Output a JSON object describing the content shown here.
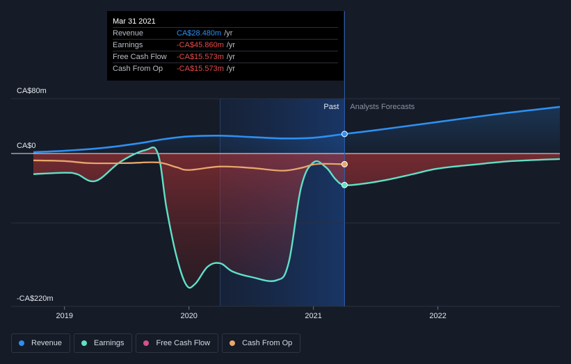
{
  "chart_data": {
    "type": "line",
    "title": "",
    "currency": "CA$",
    "y_axis": {
      "top_label": "CA$80m",
      "zero_label": "CA$0",
      "bottom_label": "-CA$220m",
      "ylim": [
        -220,
        80
      ]
    },
    "x_axis": {
      "tick_labels": [
        "2019",
        "2020",
        "2021",
        "2022"
      ],
      "xlim": [
        2018.75,
        2022.98
      ]
    },
    "divider": {
      "x": 2021.25,
      "past_label": "Past",
      "forecast_label": "Analysts Forecasts"
    },
    "series": [
      {
        "name": "Revenue",
        "color": "#2e8ff0",
        "x": [
          2018.75,
          2019.0,
          2019.3,
          2019.6,
          2019.8,
          2020.0,
          2020.25,
          2020.5,
          2020.75,
          2021.0,
          2021.25,
          2021.5,
          2021.75,
          2022.0,
          2022.5,
          2022.98
        ],
        "values": [
          2,
          4,
          8,
          15,
          21,
          25,
          26,
          24,
          22,
          23,
          28.48,
          34,
          40,
          46,
          58,
          68
        ]
      },
      {
        "name": "Earnings",
        "color": "#5fe0c8",
        "x": [
          2018.75,
          2019.0,
          2019.1,
          2019.25,
          2019.45,
          2019.65,
          2019.75,
          2019.82,
          2019.9,
          2019.98,
          2020.05,
          2020.15,
          2020.25,
          2020.35,
          2020.5,
          2020.7,
          2020.8,
          2020.9,
          2021.0,
          2021.1,
          2021.18,
          2021.25,
          2021.4,
          2021.6,
          2021.8,
          2022.0,
          2022.3,
          2022.6,
          2022.98
        ],
        "values": [
          -30,
          -28,
          -30,
          -40,
          -12,
          5,
          0,
          -80,
          -150,
          -192,
          -190,
          -165,
          -160,
          -172,
          -180,
          -185,
          -160,
          -50,
          -13,
          -20,
          -38,
          -45.86,
          -44,
          -38,
          -30,
          -22,
          -16,
          -11,
          -8
        ]
      },
      {
        "name": "Free Cash Flow",
        "color": "#d0548a",
        "x": [
          2018.75,
          2019.0,
          2019.2,
          2019.5,
          2019.75,
          2019.9,
          2020.0,
          2020.25,
          2020.5,
          2020.75,
          2020.9,
          2021.0,
          2021.1,
          2021.25
        ],
        "values": [
          -10,
          -11,
          -14,
          -14,
          -13,
          -20,
          -24,
          -19,
          -21,
          -25,
          -21,
          -16,
          -15,
          -15.573
        ]
      },
      {
        "name": "Cash From Op",
        "color": "#e8a868",
        "x": [
          2018.75,
          2019.0,
          2019.2,
          2019.5,
          2019.75,
          2019.9,
          2020.0,
          2020.25,
          2020.5,
          2020.75,
          2020.9,
          2021.0,
          2021.1,
          2021.25
        ],
        "values": [
          -10,
          -11,
          -14,
          -14,
          -13,
          -20,
          -24,
          -19,
          -21,
          -25,
          -21,
          -16,
          -15,
          -15.573
        ]
      }
    ]
  },
  "tooltip": {
    "date": "Mar 31 2021",
    "rows": [
      {
        "label": "Revenue",
        "value": "CA$28.480m",
        "unit": "/yr",
        "color": "#2e8ff0"
      },
      {
        "label": "Earnings",
        "value": "-CA$45.860m",
        "unit": "/yr",
        "color": "#e84a4a"
      },
      {
        "label": "Free Cash Flow",
        "value": "-CA$15.573m",
        "unit": "/yr",
        "color": "#e84a4a"
      },
      {
        "label": "Cash From Op",
        "value": "-CA$15.573m",
        "unit": "/yr",
        "color": "#e84a4a"
      }
    ]
  },
  "legend": [
    {
      "label": "Revenue",
      "color": "#2e8ff0"
    },
    {
      "label": "Earnings",
      "color": "#5fe0c8"
    },
    {
      "label": "Free Cash Flow",
      "color": "#d0548a"
    },
    {
      "label": "Cash From Op",
      "color": "#e8a868"
    }
  ]
}
